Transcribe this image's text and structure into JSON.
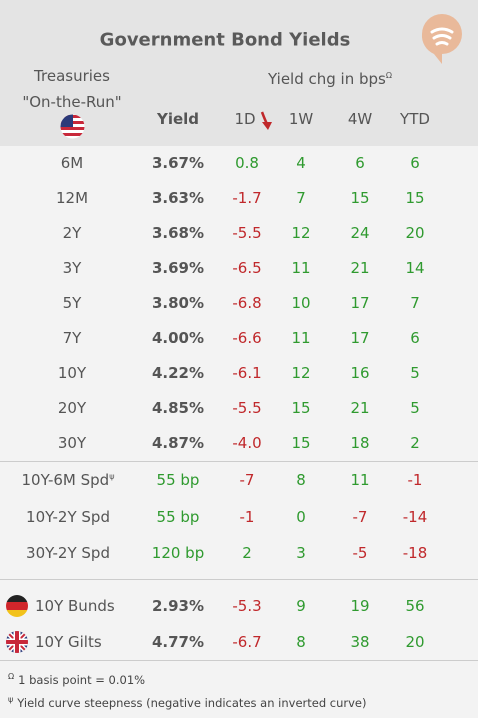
{
  "header": {
    "title": "Government Bond Yields",
    "group": "Treasuries",
    "group_sub": "\"On-the-Run\"",
    "change_header": "Yield chg in bps",
    "change_note": "Ω",
    "columns": [
      "Yield",
      "1D",
      "1W",
      "4W",
      "YTD"
    ]
  },
  "treasuries": [
    {
      "label": "6M",
      "yield": "3.67%",
      "changes": [
        "0.8",
        "4",
        "6",
        "6"
      ]
    },
    {
      "label": "12M",
      "yield": "3.63%",
      "changes": [
        "-1.7",
        "7",
        "15",
        "15"
      ]
    },
    {
      "label": "2Y",
      "yield": "3.68%",
      "changes": [
        "-5.5",
        "12",
        "24",
        "20"
      ]
    },
    {
      "label": "3Y",
      "yield": "3.69%",
      "changes": [
        "-6.5",
        "11",
        "21",
        "14"
      ]
    },
    {
      "label": "5Y",
      "yield": "3.80%",
      "changes": [
        "-6.8",
        "10",
        "17",
        "7"
      ]
    },
    {
      "label": "7Y",
      "yield": "4.00%",
      "changes": [
        "-6.6",
        "11",
        "17",
        "6"
      ]
    },
    {
      "label": "10Y",
      "yield": "4.22%",
      "changes": [
        "-6.1",
        "12",
        "16",
        "5"
      ]
    },
    {
      "label": "20Y",
      "yield": "4.85%",
      "changes": [
        "-5.5",
        "15",
        "21",
        "5"
      ]
    },
    {
      "label": "30Y",
      "yield": "4.87%",
      "changes": [
        "-4.0",
        "15",
        "18",
        "2"
      ]
    }
  ],
  "spreads": [
    {
      "label": "10Y-6M Spd",
      "note": "ψ",
      "yield": "55 bp",
      "changes": [
        "-7",
        "8",
        "11",
        "-1"
      ]
    },
    {
      "label": "10Y-2Y Spd",
      "yield": "55 bp",
      "changes": [
        "-1",
        "0",
        "-7",
        "-14"
      ]
    },
    {
      "label": "30Y-2Y Spd",
      "yield": "120 bp",
      "changes": [
        "2",
        "3",
        "-5",
        "-18"
      ]
    }
  ],
  "international": [
    {
      "label": "10Y Bunds",
      "yield": "2.93%",
      "changes": [
        "-5.3",
        "9",
        "19",
        "56"
      ]
    },
    {
      "label": "10Y Gilts",
      "yield": "4.77%",
      "changes": [
        "-6.7",
        "8",
        "38",
        "20"
      ]
    }
  ],
  "footnotes": [
    {
      "symbol": "Ω",
      "text": "1 basis point = 0.01%"
    },
    {
      "symbol": "ψ",
      "text": "Yield curve steepness (negative indicates an inverted curve)"
    }
  ]
}
